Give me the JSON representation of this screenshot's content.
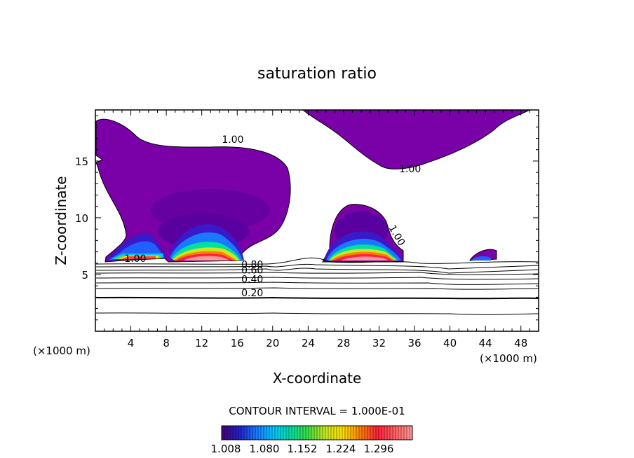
{
  "chart_data": {
    "type": "contour",
    "title": "saturation ratio",
    "xlabel": "X-coordinate",
    "ylabel": "Z-coordinate",
    "x_unit": "(×1000 m)",
    "xlim": [
      0,
      50
    ],
    "ylim": [
      0,
      19.5
    ],
    "x_ticks": [
      4,
      8,
      12,
      16,
      20,
      24,
      28,
      32,
      36,
      40,
      44,
      48
    ],
    "y_ticks": [
      5,
      10,
      15
    ],
    "contour_interval_text": "CONTOUR INTERVAL = 1.000E-01",
    "contour_labels": [
      {
        "text": "1.00",
        "x": 15.5,
        "z": 16.6
      },
      {
        "text": "1.00",
        "x": 35.5,
        "z": 14.0
      },
      {
        "text": "1.00",
        "x": 33.7,
        "z": 8.3
      },
      {
        "text": "1.00",
        "x": 4.5,
        "z": 6.1
      },
      {
        "text": "0.80",
        "x": 17.7,
        "z": 5.6
      },
      {
        "text": "0.60",
        "x": 17.7,
        "z": 5.1
      },
      {
        "text": "0.40",
        "x": 17.7,
        "z": 4.3
      },
      {
        "text": "0.20",
        "x": 17.7,
        "z": 3.1
      }
    ],
    "colorbar": {
      "ticks": [
        "1.008",
        "1.080",
        "1.152",
        "1.224",
        "1.296"
      ],
      "colors": [
        "#4a0078",
        "#2020c8",
        "#1a78ff",
        "#00c8ff",
        "#00e0a0",
        "#40e040",
        "#c8e820",
        "#ffe000",
        "#ff8000",
        "#ff2040",
        "#ff6060",
        "#ff9a9a"
      ]
    }
  }
}
